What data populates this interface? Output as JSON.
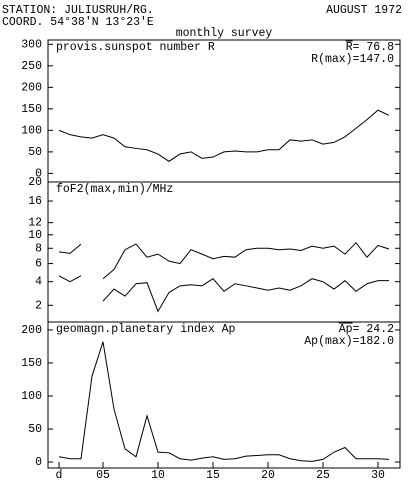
{
  "header": {
    "station": "STATION: JULIUSRUH/RG.",
    "date": "AUGUST 1972",
    "coord": "COORD. 54°38'N 13°23'E",
    "subtitle": "monthly survey"
  },
  "chart_data": [
    {
      "type": "line",
      "title": "provis.sunspot number R",
      "annotations": [
        "R= 76.8",
        "R(max)=147.0"
      ],
      "x": [
        1,
        2,
        3,
        4,
        5,
        6,
        7,
        8,
        9,
        10,
        11,
        12,
        13,
        14,
        15,
        16,
        17,
        18,
        19,
        20,
        21,
        22,
        23,
        24,
        25,
        26,
        27,
        28,
        29,
        30,
        31
      ],
      "xlim": [
        0,
        32
      ],
      "series": [
        {
          "name": "R",
          "color": "#000000",
          "values": [
            100,
            90,
            85,
            82,
            90,
            82,
            62,
            58,
            55,
            45,
            28,
            45,
            50,
            35,
            38,
            50,
            52,
            50,
            50,
            55,
            55,
            78,
            75,
            78,
            68,
            72,
            85,
            105,
            125,
            147,
            135
          ]
        }
      ],
      "ylim": [
        -20,
        310
      ],
      "yticks": [
        0,
        50,
        100,
        150,
        200,
        250,
        300
      ]
    },
    {
      "type": "line",
      "title": "foF2(max,min)/MHz",
      "scale": "sqrt",
      "x": [
        1,
        2,
        3,
        4,
        5,
        6,
        7,
        8,
        9,
        10,
        11,
        12,
        13,
        14,
        15,
        16,
        17,
        18,
        19,
        20,
        21,
        22,
        23,
        24,
        25,
        26,
        27,
        28,
        29,
        30,
        31
      ],
      "xlim": [
        0,
        32
      ],
      "series": [
        {
          "name": "foF2 max",
          "color": "#000000",
          "values": [
            7.5,
            7.3,
            8.6,
            null,
            4.3,
            5.3,
            7.8,
            8.6,
            6.8,
            7.2,
            6.3,
            6.0,
            7.8,
            7.2,
            6.6,
            6.9,
            6.8,
            7.8,
            8.0,
            8.0,
            7.8,
            7.9,
            7.7,
            8.3,
            8.0,
            8.3,
            7.2,
            8.8,
            6.8,
            8.4,
            7.9
          ]
        },
        {
          "name": "foF2 min",
          "color": "#000000",
          "values": [
            4.6,
            4.0,
            4.6,
            null,
            2.3,
            3.3,
            2.7,
            3.8,
            3.9,
            1.6,
            3.0,
            3.6,
            3.7,
            3.6,
            4.3,
            3.1,
            3.8,
            3.6,
            3.4,
            3.2,
            3.4,
            3.2,
            3.6,
            4.3,
            4.0,
            3.3,
            4.1,
            3.1,
            3.8,
            4.1,
            4.1
          ]
        }
      ],
      "ylim": [
        1,
        20
      ],
      "yticks": [
        2,
        4,
        6,
        8,
        10,
        12,
        16,
        20
      ]
    },
    {
      "type": "line",
      "title": "geomagn.planetary index Ap",
      "annotations": [
        "Ap= 24.2",
        "Ap(max)=182.0"
      ],
      "x": [
        1,
        2,
        3,
        4,
        5,
        6,
        7,
        8,
        9,
        10,
        11,
        12,
        13,
        14,
        15,
        16,
        17,
        18,
        19,
        20,
        21,
        22,
        23,
        24,
        25,
        26,
        27,
        28,
        29,
        30,
        31
      ],
      "xlim": [
        0,
        32
      ],
      "series": [
        {
          "name": "Ap",
          "color": "#000000",
          "values": [
            8,
            5,
            5,
            130,
            182,
            80,
            20,
            8,
            70,
            15,
            14,
            5,
            3,
            6,
            8,
            4,
            5,
            9,
            10,
            11,
            11,
            5,
            2,
            1,
            4,
            15,
            22,
            5,
            5,
            5,
            4
          ]
        }
      ],
      "ylim": [
        -9,
        212
      ],
      "yticks": [
        0,
        50,
        100,
        150,
        200
      ],
      "xticks": [
        {
          "value": 1,
          "label": "d"
        },
        {
          "value": 5,
          "label": "05"
        },
        10,
        15,
        20,
        25,
        30
      ]
    }
  ]
}
